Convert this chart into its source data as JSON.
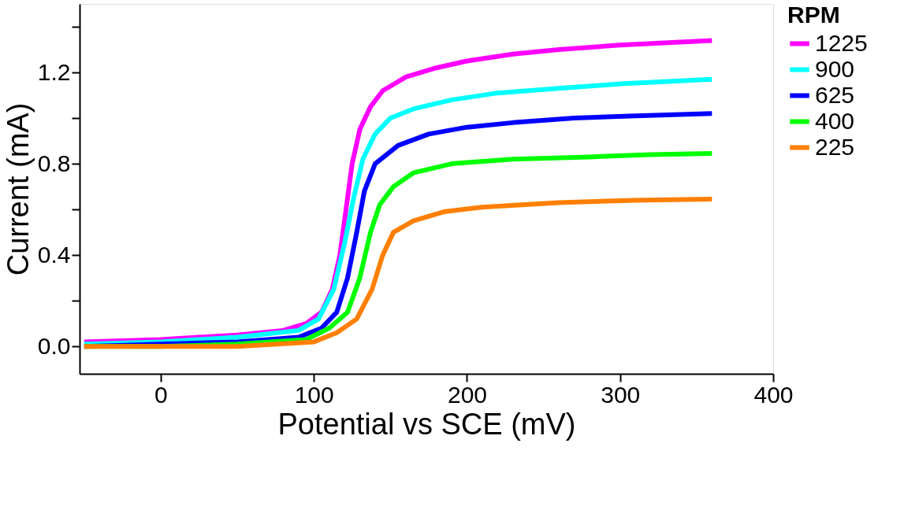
{
  "chart_data": {
    "type": "line",
    "xlabel": "Potential vs SCE (mV)",
    "ylabel": "Current (mA)",
    "legend_title": "RPM",
    "legend": "right",
    "marker": "none",
    "line_style": "solid",
    "grid": false,
    "xlim": [
      -53,
      400
    ],
    "xticks": [
      0,
      100,
      200,
      300,
      400
    ],
    "ylim": [
      -0.12,
      1.5
    ],
    "yticks": [
      {
        "value": 0,
        "label": "0.0"
      },
      {
        "value": 0.2,
        "label": null
      },
      0.4,
      {
        "value": 0.6,
        "label": null
      },
      0.8,
      {
        "value": 1.0,
        "label": null
      },
      1.2,
      {
        "value": 1.4,
        "label": null
      }
    ],
    "series": [
      {
        "name": "1225",
        "color": "#ff00ff",
        "x": [
          -50,
          0,
          50,
          80,
          95,
          105,
          112,
          117,
          121,
          125,
          130,
          137,
          145,
          160,
          180,
          200,
          230,
          260,
          300,
          360
        ],
        "values": [
          0.02,
          0.03,
          0.05,
          0.07,
          0.1,
          0.15,
          0.25,
          0.4,
          0.6,
          0.8,
          0.95,
          1.05,
          1.12,
          1.18,
          1.22,
          1.25,
          1.28,
          1.3,
          1.32,
          1.34
        ]
      },
      {
        "name": "900",
        "color": "#00ffff",
        "x": [
          -50,
          0,
          50,
          90,
          103,
          113,
          120,
          126,
          132,
          140,
          150,
          165,
          190,
          220,
          260,
          300,
          360
        ],
        "values": [
          0.01,
          0.02,
          0.04,
          0.07,
          0.12,
          0.25,
          0.45,
          0.65,
          0.82,
          0.93,
          1.0,
          1.04,
          1.08,
          1.11,
          1.13,
          1.15,
          1.17
        ]
      },
      {
        "name": "625",
        "color": "#0000ff",
        "x": [
          -50,
          0,
          50,
          90,
          105,
          115,
          122,
          128,
          133,
          140,
          155,
          175,
          200,
          230,
          270,
          310,
          360
        ],
        "values": [
          0.0,
          0.01,
          0.02,
          0.04,
          0.08,
          0.15,
          0.3,
          0.5,
          0.68,
          0.8,
          0.88,
          0.93,
          0.96,
          0.98,
          1.0,
          1.01,
          1.02
        ]
      },
      {
        "name": "400",
        "color": "#00ff00",
        "x": [
          -50,
          0,
          50,
          95,
          110,
          122,
          130,
          137,
          143,
          152,
          165,
          190,
          230,
          280,
          320,
          360
        ],
        "values": [
          0.0,
          0.0,
          0.01,
          0.03,
          0.08,
          0.15,
          0.3,
          0.5,
          0.62,
          0.7,
          0.76,
          0.8,
          0.82,
          0.83,
          0.84,
          0.845
        ]
      },
      {
        "name": "225",
        "color": "#ff7f00",
        "x": [
          -50,
          0,
          50,
          100,
          115,
          128,
          138,
          145,
          152,
          165,
          185,
          210,
          260,
          310,
          360
        ],
        "values": [
          0.0,
          0.0,
          0.0,
          0.02,
          0.06,
          0.12,
          0.25,
          0.4,
          0.5,
          0.55,
          0.59,
          0.61,
          0.63,
          0.64,
          0.645
        ]
      }
    ]
  }
}
